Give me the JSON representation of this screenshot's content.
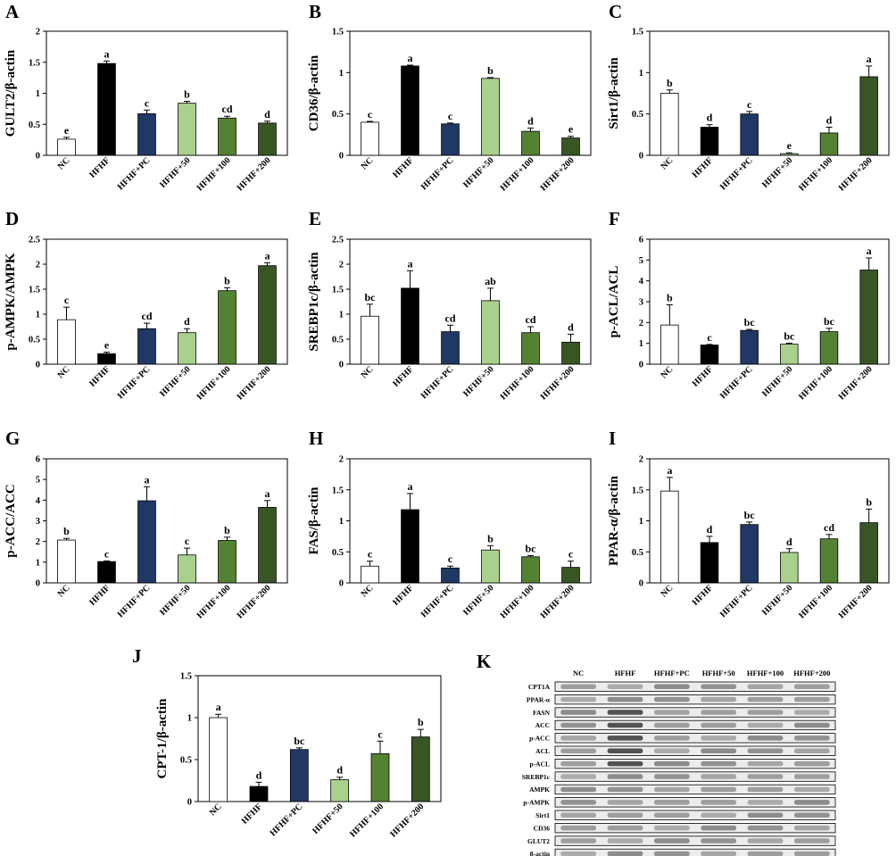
{
  "categories": [
    "NC",
    "HFHF",
    "HFHF+PC",
    "HFHF+50",
    "HFHF+100",
    "HFHF+200"
  ],
  "colors": [
    "#ffffff",
    "#000000",
    "#1f3864",
    "#a9d18e",
    "#548235",
    "#375623"
  ],
  "chart_data": [
    {
      "id": "A",
      "type": "bar",
      "ylabel": "GULT2/β-actin",
      "ylim": [
        0,
        2
      ],
      "ticks": [
        "0",
        "0.5",
        "1",
        "1.5",
        "2"
      ],
      "tickValues": [
        0,
        0.5,
        1,
        1.5,
        2
      ],
      "values": [
        0.26,
        1.48,
        0.67,
        0.84,
        0.6,
        0.52
      ],
      "errors": [
        0.03,
        0.04,
        0.06,
        0.03,
        0.03,
        0.03
      ],
      "letters": [
        "e",
        "a",
        "c",
        "b",
        "cd",
        "d"
      ]
    },
    {
      "id": "B",
      "type": "bar",
      "ylabel": "CD36/β-actin",
      "ylim": [
        0,
        1.5
      ],
      "ticks": [
        "0",
        "0.5",
        "1",
        "1.5"
      ],
      "tickValues": [
        0,
        0.5,
        1,
        1.5
      ],
      "values": [
        0.4,
        1.08,
        0.38,
        0.93,
        0.29,
        0.21
      ],
      "errors": [
        0.01,
        0.01,
        0.01,
        0.01,
        0.04,
        0.02
      ],
      "letters": [
        "c",
        "a",
        "c",
        "b",
        "d",
        "e"
      ]
    },
    {
      "id": "C",
      "type": "bar",
      "ylabel": "Sirt1/β-actin",
      "ylim": [
        0,
        1.5
      ],
      "ticks": [
        "0",
        "0.5",
        "1",
        "1.5"
      ],
      "tickValues": [
        0,
        0.5,
        1,
        1.5
      ],
      "values": [
        0.75,
        0.34,
        0.5,
        0.02,
        0.27,
        0.95
      ],
      "errors": [
        0.04,
        0.03,
        0.03,
        0.01,
        0.07,
        0.13
      ],
      "letters": [
        "b",
        "d",
        "c",
        "e",
        "d",
        "a"
      ]
    },
    {
      "id": "D",
      "type": "bar",
      "ylabel": "p-AMPK/AMPK",
      "ylim": [
        0,
        2.5
      ],
      "ticks": [
        "0",
        "0.5",
        "1",
        "1.5",
        "2",
        "2.5"
      ],
      "tickValues": [
        0,
        0.5,
        1,
        1.5,
        2,
        2.5
      ],
      "values": [
        0.89,
        0.21,
        0.71,
        0.63,
        1.47,
        1.97
      ],
      "errors": [
        0.25,
        0.03,
        0.11,
        0.08,
        0.06,
        0.06
      ],
      "letters": [
        "c",
        "e",
        "cd",
        "d",
        "b",
        "a"
      ]
    },
    {
      "id": "E",
      "type": "bar",
      "ylabel": "SREBP1c/β-actin",
      "ylim": [
        0,
        2.5
      ],
      "ticks": [
        "0",
        "0.5",
        "1",
        "1.5",
        "2",
        "2.5"
      ],
      "tickValues": [
        0,
        0.5,
        1,
        1.5,
        2,
        2.5
      ],
      "values": [
        0.96,
        1.52,
        0.65,
        1.27,
        0.63,
        0.44
      ],
      "errors": [
        0.24,
        0.35,
        0.13,
        0.25,
        0.12,
        0.16
      ],
      "letters": [
        "bc",
        "a",
        "cd",
        "ab",
        "cd",
        "d"
      ]
    },
    {
      "id": "F",
      "type": "bar",
      "ylabel": "p-ACL/ACL",
      "ylim": [
        0,
        6
      ],
      "ticks": [
        "0",
        "1",
        "2",
        "3",
        "4",
        "5",
        "6"
      ],
      "tickValues": [
        0,
        1,
        2,
        3,
        4,
        5,
        6
      ],
      "values": [
        1.88,
        0.92,
        1.62,
        0.96,
        1.56,
        4.52
      ],
      "errors": [
        0.97,
        0.03,
        0.05,
        0.05,
        0.16,
        0.58
      ],
      "letters": [
        "b",
        "c",
        "bc",
        "bc",
        "bc",
        "a"
      ]
    },
    {
      "id": "G",
      "type": "bar",
      "ylabel": "p-ACC/ACC",
      "ylim": [
        0,
        6
      ],
      "ticks": [
        "0",
        "1",
        "2",
        "3",
        "4",
        "5",
        "6"
      ],
      "tickValues": [
        0,
        1,
        2,
        3,
        4,
        5,
        6
      ],
      "values": [
        2.07,
        1.03,
        3.97,
        1.35,
        2.05,
        3.65
      ],
      "errors": [
        0.08,
        0.03,
        0.68,
        0.33,
        0.16,
        0.33
      ],
      "letters": [
        "b",
        "c",
        "a",
        "c",
        "b",
        "a"
      ]
    },
    {
      "id": "H",
      "type": "bar",
      "ylabel": "FAS/β-actin",
      "ylim": [
        0,
        2
      ],
      "ticks": [
        "0",
        "0.5",
        "1",
        "1.5",
        "2"
      ],
      "tickValues": [
        0,
        0.5,
        1,
        1.5,
        2
      ],
      "values": [
        0.27,
        1.18,
        0.24,
        0.53,
        0.42,
        0.25
      ],
      "errors": [
        0.08,
        0.26,
        0.03,
        0.07,
        0.02,
        0.1
      ],
      "letters": [
        "c",
        "a",
        "c",
        "b",
        "bc",
        "c"
      ]
    },
    {
      "id": "I",
      "type": "bar",
      "ylabel": "PPAR-α/β-actin",
      "ylim": [
        0,
        2
      ],
      "ticks": [
        "0",
        "0.5",
        "1",
        "1.5",
        "2"
      ],
      "tickValues": [
        0,
        0.5,
        1,
        1.5,
        2
      ],
      "values": [
        1.48,
        0.65,
        0.94,
        0.49,
        0.71,
        0.97
      ],
      "errors": [
        0.22,
        0.1,
        0.04,
        0.06,
        0.07,
        0.22
      ],
      "letters": [
        "a",
        "d",
        "bc",
        "d",
        "cd",
        "b"
      ]
    },
    {
      "id": "J",
      "type": "bar",
      "ylabel": "CPT-1/β-actin",
      "ylim": [
        0,
        1.5
      ],
      "ticks": [
        "0",
        "0.5",
        "1",
        "1.5"
      ],
      "tickValues": [
        0,
        0.5,
        1,
        1.5
      ],
      "values": [
        1.0,
        0.18,
        0.62,
        0.26,
        0.57,
        0.77
      ],
      "errors": [
        0.04,
        0.05,
        0.02,
        0.03,
        0.15,
        0.09
      ],
      "letters": [
        "a",
        "d",
        "bc",
        "d",
        "c",
        "b"
      ]
    }
  ],
  "blot": {
    "letter": "K",
    "columns": [
      "NC",
      "HFHF",
      "HFHF+PC",
      "HFHF+50",
      "HFHF+100",
      "HFHF+200"
    ],
    "rows": [
      "CPT1A",
      "PPAR-α",
      "FASN",
      "ACC",
      "p-ACC",
      "ACL",
      "p-ACL",
      "SREBP1c",
      "AMPK",
      "p-AMPK",
      "Sirt1",
      "CD36",
      "GLUT2",
      "β-actin"
    ]
  }
}
